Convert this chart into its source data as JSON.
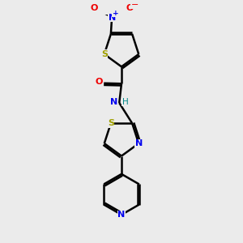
{
  "background_color": "#ebebeb",
  "bond_color": "#000000",
  "atom_colors": {
    "S": "#a0a000",
    "N": "#0000ee",
    "O": "#ee0000",
    "H": "#008888",
    "C": "#000000"
  },
  "figsize": [
    3.0,
    3.0
  ],
  "dpi": 100,
  "xlim": [
    0,
    10
  ],
  "ylim": [
    0,
    10
  ]
}
